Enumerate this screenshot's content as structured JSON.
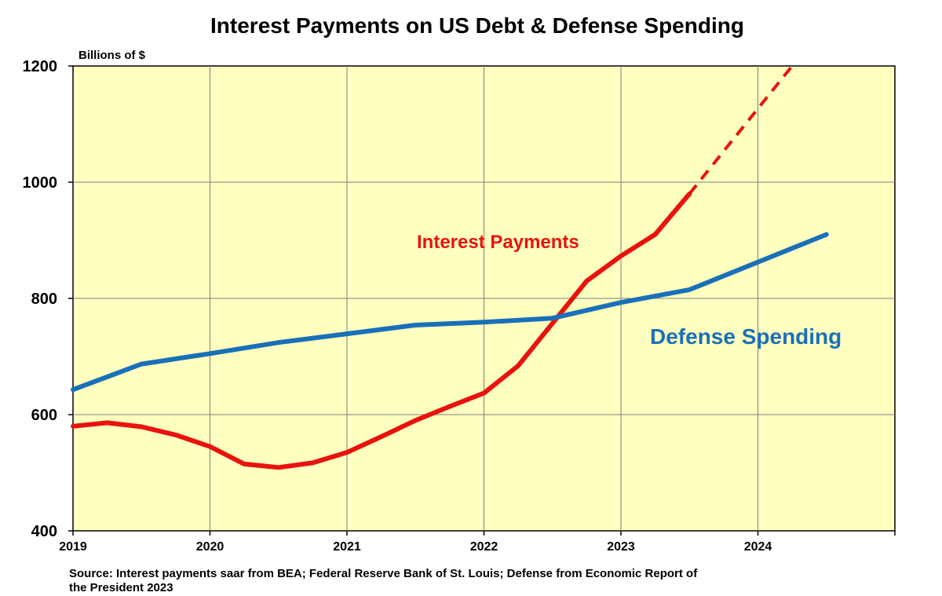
{
  "chart_data": {
    "type": "line",
    "title": "Interest Payments on US Debt & Defense Spending",
    "unit_label": "Billions of $",
    "ylim": [
      400,
      1200
    ],
    "xlim": [
      2019.0,
      2025.0
    ],
    "y_ticks": [
      "400",
      "600",
      "800",
      "1000",
      "1200"
    ],
    "x_ticks": [
      "2019",
      "2020",
      "2021",
      "2022",
      "2023",
      "2024"
    ],
    "grid": true,
    "background_color": "#ffffc0",
    "series": [
      {
        "name": "Interest Payments",
        "color": "#e8130d",
        "x": [
          2019.0,
          2019.25,
          2019.5,
          2019.75,
          2020.0,
          2020.25,
          2020.5,
          2020.75,
          2021.0,
          2021.25,
          2021.5,
          2021.75,
          2022.0,
          2022.25,
          2022.5,
          2022.75,
          2023.0,
          2023.25,
          2023.5
        ],
        "y": [
          580,
          586,
          579,
          565,
          545,
          515,
          509,
          517,
          535,
          562,
          590,
          614,
          637,
          684,
          757,
          830,
          873,
          910,
          980
        ],
        "projection": {
          "x": [
            2023.5,
            2024.25
          ],
          "y": [
            980,
            1200
          ]
        }
      },
      {
        "name": "Defense Spending",
        "color": "#1a70b8",
        "x": [
          2019.0,
          2019.5,
          2020.0,
          2020.5,
          2021.0,
          2021.5,
          2022.0,
          2022.5,
          2023.0,
          2023.5,
          2024.5
        ],
        "y": [
          643,
          687,
          705,
          724,
          739,
          754,
          759,
          766,
          793,
          815,
          910
        ]
      }
    ],
    "source_lines": [
      "Source: Interest payments saar from BEA; Federal Reserve Bank of St. Louis; Defense from Economic Report of",
      "the President 2023"
    ]
  }
}
